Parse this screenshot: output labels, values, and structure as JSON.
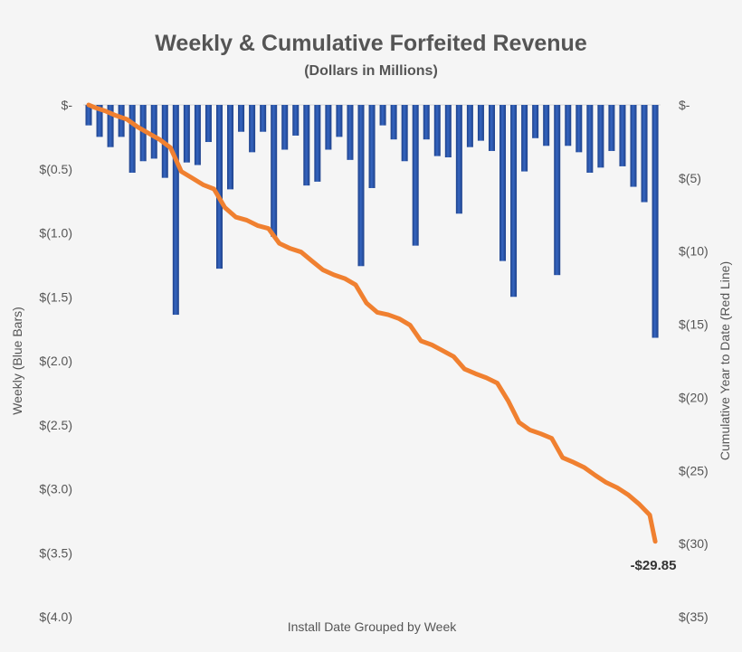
{
  "chart_data": {
    "type": "bar+line",
    "title": "Weekly & Cumulative Forfeited Revenue",
    "subtitle": "(Dollars in Millions)",
    "xlabel": "Install Date Grouped by Week",
    "ylabel_left": "Weekly (Blue Bars)",
    "ylabel_right": "Cumulative Year to Date (Red Line)",
    "ylim_left": [
      0,
      -4.0
    ],
    "ylim_right": [
      0,
      -35
    ],
    "left_ticks": [
      "$-",
      "$(0.5)",
      "$(1.0)",
      "$(1.5)",
      "$(2.0)",
      "$(2.5)",
      "$(3.0)",
      "$(3.5)",
      "$(4.0)"
    ],
    "right_ticks": [
      "$-",
      "$(5)",
      "$(10)",
      "$(15)",
      "$(20)",
      "$(25)",
      "$(30)",
      "$(35)"
    ],
    "grid": false,
    "weekly": [
      -0.16,
      -0.25,
      -0.33,
      -0.25,
      -0.53,
      -0.44,
      -0.42,
      -0.57,
      -1.64,
      -0.45,
      -0.47,
      -0.29,
      -1.28,
      -0.66,
      -0.21,
      -0.37,
      -0.21,
      -1.03,
      -0.35,
      -0.24,
      -0.63,
      -0.6,
      -0.35,
      -0.25,
      -0.43,
      -1.26,
      -0.65,
      -0.16,
      -0.27,
      -0.44,
      -1.1,
      -0.27,
      -0.4,
      -0.41,
      -0.85,
      -0.33,
      -0.28,
      -0.36,
      -1.22,
      -1.5,
      -0.52,
      -0.26,
      -0.32,
      -1.33,
      -0.32,
      -0.37,
      -0.53,
      -0.49,
      -0.36,
      -0.48,
      -0.64,
      -0.76,
      -1.82
    ],
    "cumulative": [
      -0.16,
      -0.41,
      -0.73,
      -0.98,
      -1.51,
      -1.94,
      -2.36,
      -2.92,
      -4.55,
      -5.0,
      -5.46,
      -5.75,
      -7.02,
      -7.67,
      -7.88,
      -8.25,
      -8.45,
      -9.47,
      -9.82,
      -10.06,
      -10.68,
      -11.28,
      -11.62,
      -11.87,
      -12.3,
      -13.55,
      -14.19,
      -14.35,
      -14.62,
      -15.06,
      -16.14,
      -16.41,
      -16.81,
      -17.21,
      -18.06,
      -18.38,
      -18.66,
      -19.02,
      -20.23,
      -21.71,
      -22.23,
      -22.49,
      -22.8,
      -24.12,
      -24.44,
      -24.8,
      -25.33,
      -25.82,
      -26.17,
      -26.65,
      -27.28,
      -28.04,
      -29.85
    ],
    "end_label": "-$29.85",
    "colors": {
      "bars": "#2b57ab",
      "line": "#f08030"
    }
  }
}
